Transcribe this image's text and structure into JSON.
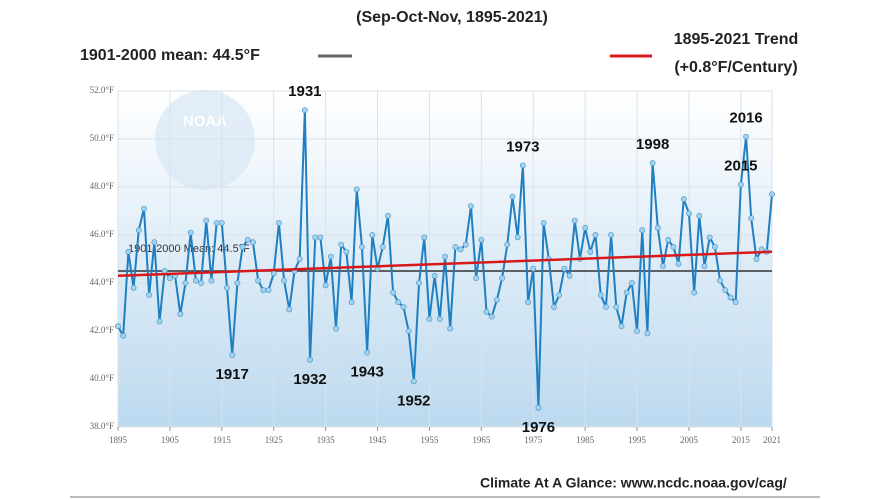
{
  "chart_data": {
    "type": "line",
    "title": "(Sep-Oct-Nov, 1895-2021)",
    "footer": "Climate At A Glance: www.ncdc.noaa.gov/cag/",
    "logo_text": "NOAA",
    "legend": [
      {
        "label": "1901-2000 mean: 44.5°F",
        "color": "#666666"
      },
      {
        "label": "1895-2021 Trend",
        "sublabel": "(+0.8°F/Century)",
        "color": "#d7191c"
      }
    ],
    "mean": {
      "value": 44.5,
      "label": "1901-2000 Mean: 44.5°F",
      "color": "#333333"
    },
    "trend": {
      "x": [
        1895,
        2021
      ],
      "values": [
        44.3,
        45.3
      ],
      "color": "#d7191c"
    },
    "x": [
      1895,
      1896,
      1897,
      1898,
      1899,
      1900,
      1901,
      1902,
      1903,
      1904,
      1905,
      1906,
      1907,
      1908,
      1909,
      1910,
      1911,
      1912,
      1913,
      1914,
      1915,
      1916,
      1917,
      1918,
      1919,
      1920,
      1921,
      1922,
      1923,
      1924,
      1925,
      1926,
      1927,
      1928,
      1929,
      1930,
      1931,
      1932,
      1933,
      1934,
      1935,
      1936,
      1937,
      1938,
      1939,
      1940,
      1941,
      1942,
      1943,
      1944,
      1945,
      1946,
      1947,
      1948,
      1949,
      1950,
      1951,
      1952,
      1953,
      1954,
      1955,
      1956,
      1957,
      1958,
      1959,
      1960,
      1961,
      1962,
      1963,
      1964,
      1965,
      1966,
      1967,
      1968,
      1969,
      1970,
      1971,
      1972,
      1973,
      1974,
      1975,
      1976,
      1977,
      1978,
      1979,
      1980,
      1981,
      1982,
      1983,
      1984,
      1985,
      1986,
      1987,
      1988,
      1989,
      1990,
      1991,
      1992,
      1993,
      1994,
      1995,
      1996,
      1997,
      1998,
      1999,
      2000,
      2001,
      2002,
      2003,
      2004,
      2005,
      2006,
      2007,
      2008,
      2009,
      2010,
      2011,
      2012,
      2013,
      2014,
      2015,
      2016,
      2017,
      2018,
      2019,
      2020,
      2021
    ],
    "series": [
      {
        "name": "Sep-Oct-Nov temperature",
        "color": "#1f7fc0",
        "values": [
          42.2,
          41.8,
          45.3,
          43.8,
          46.2,
          47.1,
          43.5,
          45.7,
          42.4,
          44.5,
          44.2,
          44.3,
          42.7,
          44.0,
          46.1,
          44.1,
          44.0,
          46.6,
          44.1,
          46.5,
          46.5,
          43.8,
          41.0,
          44.0,
          45.5,
          45.8,
          45.7,
          44.1,
          43.7,
          43.7,
          44.4,
          46.5,
          44.1,
          42.9,
          44.5,
          45.0,
          51.2,
          40.8,
          45.9,
          45.9,
          43.9,
          45.1,
          42.1,
          45.6,
          45.3,
          43.2,
          47.9,
          45.5,
          41.1,
          46.0,
          44.6,
          45.5,
          46.8,
          43.6,
          43.2,
          43.0,
          42.0,
          39.9,
          44.0,
          45.9,
          42.5,
          44.3,
          42.5,
          45.1,
          42.1,
          45.5,
          45.4,
          45.6,
          47.2,
          44.2,
          45.8,
          42.8,
          42.6,
          43.3,
          44.2,
          45.6,
          47.6,
          45.9,
          48.9,
          43.2,
          44.6,
          38.8,
          46.5,
          45.0,
          43.0,
          43.5,
          44.6,
          44.3,
          46.6,
          45.0,
          46.3,
          45.3,
          46.0,
          43.5,
          43.0,
          46.0,
          43.0,
          42.2,
          43.6,
          44.0,
          42.0,
          46.2,
          41.9,
          49.0,
          46.3,
          44.7,
          45.8,
          45.5,
          44.8,
          47.5,
          46.9,
          43.6,
          46.8,
          44.7,
          45.9,
          45.5,
          44.1,
          43.7,
          43.4,
          43.2,
          48.1,
          50.1,
          46.7,
          45.0,
          45.4,
          45.3,
          47.7
        ]
      }
    ],
    "annotations": [
      "1931",
      "1917",
      "1932",
      "1943",
      "1952",
      "1976",
      "1973",
      "1998",
      "2015",
      "2016"
    ],
    "xlim": [
      1895,
      2021
    ],
    "xticks": [
      1895,
      1905,
      1915,
      1925,
      1935,
      1945,
      1955,
      1965,
      1975,
      1985,
      1995,
      2005,
      2015,
      2021
    ],
    "ylim": [
      38,
      52
    ],
    "yticks": [
      {
        "value": 38,
        "label": "38.0°F"
      },
      {
        "value": 40,
        "label": "40.0°F"
      },
      {
        "value": 42,
        "label": "42.0°F"
      },
      {
        "value": 44,
        "label": "44.0°F"
      },
      {
        "value": 46,
        "label": "46.0°F"
      },
      {
        "value": 48,
        "label": "48.0°F"
      },
      {
        "value": 50,
        "label": "50.0°F"
      },
      {
        "value": 52,
        "label": "52.0°F"
      }
    ],
    "grid": true
  }
}
